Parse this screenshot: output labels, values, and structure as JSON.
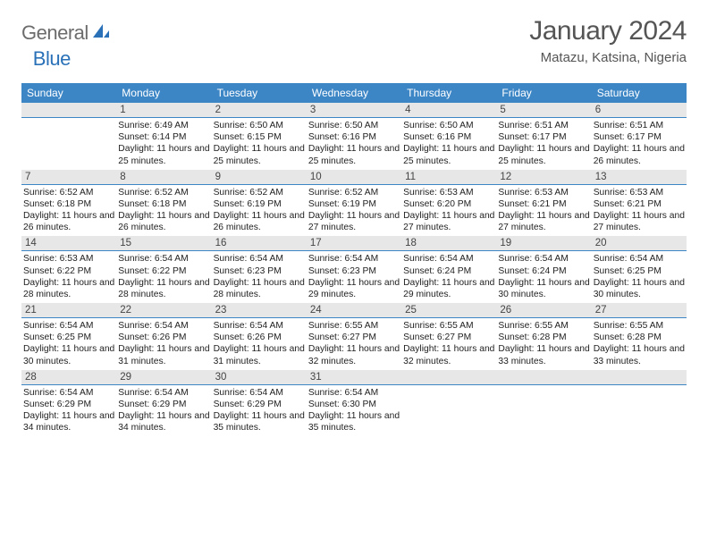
{
  "brand": {
    "general": "General",
    "blue": "Blue"
  },
  "title": "January 2024",
  "location": "Matazu, Katsina, Nigeria",
  "colors": {
    "header_bg": "#3d86c6",
    "header_text": "#ffffff",
    "daynum_bg": "#e7e7e7",
    "rule": "#3d86c6"
  },
  "type": "table",
  "columns": [
    "Sunday",
    "Monday",
    "Tuesday",
    "Wednesday",
    "Thursday",
    "Friday",
    "Saturday"
  ],
  "weeks": [
    [
      {},
      {
        "n": "1",
        "sr": "6:49 AM",
        "ss": "6:14 PM",
        "dl": "11 hours and 25 minutes."
      },
      {
        "n": "2",
        "sr": "6:50 AM",
        "ss": "6:15 PM",
        "dl": "11 hours and 25 minutes."
      },
      {
        "n": "3",
        "sr": "6:50 AM",
        "ss": "6:16 PM",
        "dl": "11 hours and 25 minutes."
      },
      {
        "n": "4",
        "sr": "6:50 AM",
        "ss": "6:16 PM",
        "dl": "11 hours and 25 minutes."
      },
      {
        "n": "5",
        "sr": "6:51 AM",
        "ss": "6:17 PM",
        "dl": "11 hours and 25 minutes."
      },
      {
        "n": "6",
        "sr": "6:51 AM",
        "ss": "6:17 PM",
        "dl": "11 hours and 26 minutes."
      }
    ],
    [
      {
        "n": "7",
        "sr": "6:52 AM",
        "ss": "6:18 PM",
        "dl": "11 hours and 26 minutes."
      },
      {
        "n": "8",
        "sr": "6:52 AM",
        "ss": "6:18 PM",
        "dl": "11 hours and 26 minutes."
      },
      {
        "n": "9",
        "sr": "6:52 AM",
        "ss": "6:19 PM",
        "dl": "11 hours and 26 minutes."
      },
      {
        "n": "10",
        "sr": "6:52 AM",
        "ss": "6:19 PM",
        "dl": "11 hours and 27 minutes."
      },
      {
        "n": "11",
        "sr": "6:53 AM",
        "ss": "6:20 PM",
        "dl": "11 hours and 27 minutes."
      },
      {
        "n": "12",
        "sr": "6:53 AM",
        "ss": "6:21 PM",
        "dl": "11 hours and 27 minutes."
      },
      {
        "n": "13",
        "sr": "6:53 AM",
        "ss": "6:21 PM",
        "dl": "11 hours and 27 minutes."
      }
    ],
    [
      {
        "n": "14",
        "sr": "6:53 AM",
        "ss": "6:22 PM",
        "dl": "11 hours and 28 minutes."
      },
      {
        "n": "15",
        "sr": "6:54 AM",
        "ss": "6:22 PM",
        "dl": "11 hours and 28 minutes."
      },
      {
        "n": "16",
        "sr": "6:54 AM",
        "ss": "6:23 PM",
        "dl": "11 hours and 28 minutes."
      },
      {
        "n": "17",
        "sr": "6:54 AM",
        "ss": "6:23 PM",
        "dl": "11 hours and 29 minutes."
      },
      {
        "n": "18",
        "sr": "6:54 AM",
        "ss": "6:24 PM",
        "dl": "11 hours and 29 minutes."
      },
      {
        "n": "19",
        "sr": "6:54 AM",
        "ss": "6:24 PM",
        "dl": "11 hours and 30 minutes."
      },
      {
        "n": "20",
        "sr": "6:54 AM",
        "ss": "6:25 PM",
        "dl": "11 hours and 30 minutes."
      }
    ],
    [
      {
        "n": "21",
        "sr": "6:54 AM",
        "ss": "6:25 PM",
        "dl": "11 hours and 30 minutes."
      },
      {
        "n": "22",
        "sr": "6:54 AM",
        "ss": "6:26 PM",
        "dl": "11 hours and 31 minutes."
      },
      {
        "n": "23",
        "sr": "6:54 AM",
        "ss": "6:26 PM",
        "dl": "11 hours and 31 minutes."
      },
      {
        "n": "24",
        "sr": "6:55 AM",
        "ss": "6:27 PM",
        "dl": "11 hours and 32 minutes."
      },
      {
        "n": "25",
        "sr": "6:55 AM",
        "ss": "6:27 PM",
        "dl": "11 hours and 32 minutes."
      },
      {
        "n": "26",
        "sr": "6:55 AM",
        "ss": "6:28 PM",
        "dl": "11 hours and 33 minutes."
      },
      {
        "n": "27",
        "sr": "6:55 AM",
        "ss": "6:28 PM",
        "dl": "11 hours and 33 minutes."
      }
    ],
    [
      {
        "n": "28",
        "sr": "6:54 AM",
        "ss": "6:29 PM",
        "dl": "11 hours and 34 minutes."
      },
      {
        "n": "29",
        "sr": "6:54 AM",
        "ss": "6:29 PM",
        "dl": "11 hours and 34 minutes."
      },
      {
        "n": "30",
        "sr": "6:54 AM",
        "ss": "6:29 PM",
        "dl": "11 hours and 35 minutes."
      },
      {
        "n": "31",
        "sr": "6:54 AM",
        "ss": "6:30 PM",
        "dl": "11 hours and 35 minutes."
      },
      {},
      {},
      {}
    ]
  ],
  "labels": {
    "sunrise": "Sunrise: ",
    "sunset": "Sunset: ",
    "daylight": "Daylight: "
  }
}
